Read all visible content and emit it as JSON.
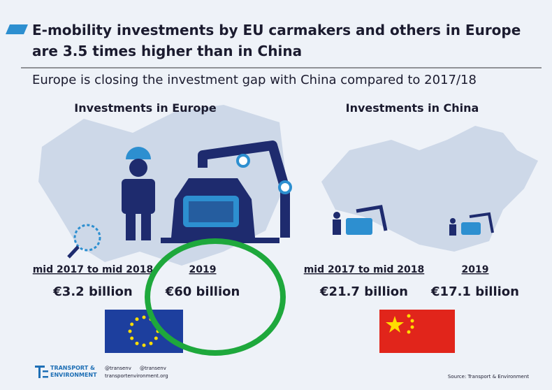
{
  "header": {
    "title_lines": [
      "E-mobility investments by EU carmakers and others in Europe",
      "are 3.5 times higher than in China"
    ],
    "subtitle": "Europe is closing the investment gap with China compared to 2017/18"
  },
  "panels": [
    {
      "heading": "Investments in Europe",
      "periods": [
        {
          "label": "mid 2017 to mid 2018",
          "amount": "€3.2 billion"
        },
        {
          "label": "2019",
          "amount": "€60 billion"
        }
      ]
    },
    {
      "heading": "Investments in China",
      "periods": [
        {
          "label": "mid 2017 to mid 2018",
          "amount": "€21.7 billion"
        },
        {
          "label": "2019",
          "amount": "€17.1 billion"
        }
      ]
    }
  ],
  "footer": {
    "org_lines": [
      "TRANSPORT &",
      "ENVIRONMENT"
    ],
    "twitter": "@transenv",
    "facebook": "@transenv",
    "website": "transportenvironment.org",
    "source": "Source: Transport & Environment"
  }
}
